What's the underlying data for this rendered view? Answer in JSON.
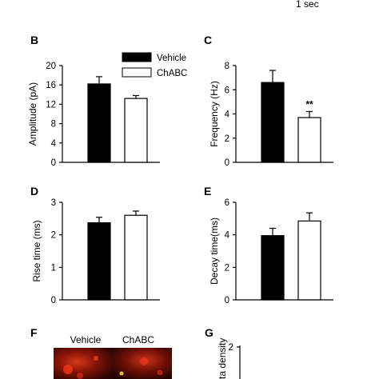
{
  "scale_bar": {
    "label": "1 sec"
  },
  "legend": [
    {
      "label": "Vehicle",
      "color": "#000000"
    },
    {
      "label": "ChABC",
      "color": "#ffffff"
    }
  ],
  "colors": {
    "vehicle": "#000000",
    "chabc": "#ffffff",
    "axis": "#000000"
  },
  "chart_data": [
    {
      "type": "bar",
      "panel": "B",
      "categories": [
        "Vehicle",
        "ChABC"
      ],
      "values": [
        16.2,
        13.2
      ],
      "errors": [
        1.5,
        0.6
      ],
      "ylabel": "Amplitude (pA)",
      "ylim": [
        0,
        20
      ],
      "yticks": [
        0,
        4,
        8,
        12,
        16,
        20
      ],
      "significance": [
        "",
        ""
      ]
    },
    {
      "type": "bar",
      "panel": "C",
      "categories": [
        "Vehicle",
        "ChABC"
      ],
      "values": [
        6.6,
        3.7
      ],
      "errors": [
        1.0,
        0.5
      ],
      "ylabel": "Frequency (Hz)",
      "ylim": [
        0,
        8
      ],
      "yticks": [
        0,
        2,
        4,
        6,
        8
      ],
      "significance": [
        "",
        "**"
      ]
    },
    {
      "type": "bar",
      "panel": "D",
      "categories": [
        "Vehicle",
        "ChABC"
      ],
      "values": [
        2.37,
        2.6
      ],
      "errors": [
        0.17,
        0.13
      ],
      "ylabel": "Rise time (ms)",
      "ylim": [
        0,
        3
      ],
      "yticks": [
        0,
        1,
        2,
        3
      ],
      "significance": [
        "",
        ""
      ]
    },
    {
      "type": "bar",
      "panel": "E",
      "categories": [
        "Vehicle",
        "ChABC"
      ],
      "values": [
        3.95,
        4.85
      ],
      "errors": [
        0.45,
        0.5
      ],
      "ylabel": "Decay time(ms)",
      "ylim": [
        0,
        6
      ],
      "yticks": [
        0,
        2,
        4,
        6
      ],
      "significance": [
        "",
        ""
      ]
    }
  ],
  "panel_f": {
    "letter": "F",
    "labels": [
      "Vehicle",
      "ChABC"
    ]
  },
  "panel_g": {
    "letter": "G",
    "ylabel_fragment": "ta density",
    "tick": "2"
  }
}
